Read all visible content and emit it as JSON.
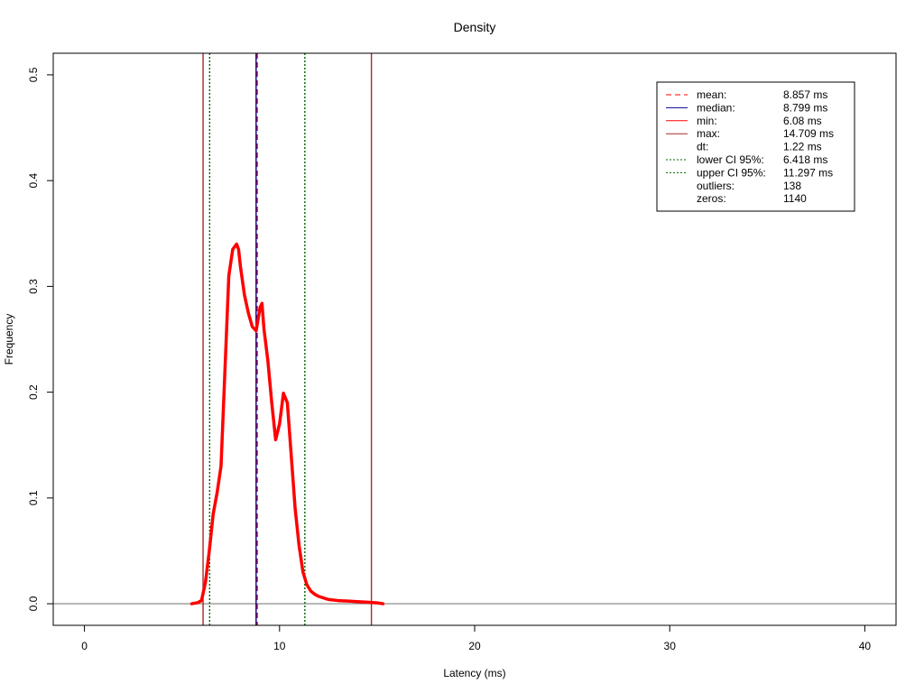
{
  "chart_data": {
    "type": "line",
    "title": "Density",
    "xlabel": "Latency (ms)",
    "ylabel": "Frequency",
    "xlim": [
      -1.6,
      41.6
    ],
    "ylim": [
      -0.0204,
      0.5204
    ],
    "x_ticks": [
      0,
      10,
      20,
      30,
      40
    ],
    "y_ticks": [
      0.0,
      0.1,
      0.2,
      0.3,
      0.4,
      0.5
    ],
    "x_tick_labels": [
      "0",
      "10",
      "20",
      "30",
      "40"
    ],
    "y_tick_labels": [
      "0.0",
      "0.1",
      "0.2",
      "0.3",
      "0.4",
      "0.5"
    ],
    "grid": false,
    "legend_position": "top-right",
    "series": [
      {
        "color": "#ff0000",
        "x": [
          5.5,
          5.8,
          6.0,
          6.2,
          6.4,
          6.6,
          6.8,
          7.0,
          7.2,
          7.4,
          7.6,
          7.8,
          7.9,
          8.0,
          8.2,
          8.4,
          8.6,
          8.8,
          9.0,
          9.1,
          9.2,
          9.4,
          9.6,
          9.8,
          10.0,
          10.2,
          10.4,
          10.6,
          10.8,
          11.0,
          11.2,
          11.4,
          11.6,
          11.8,
          12.0,
          12.5,
          13.0,
          13.5,
          14.0,
          14.5,
          15.0,
          15.3
        ],
        "y": [
          0.0,
          0.001,
          0.003,
          0.02,
          0.05,
          0.085,
          0.105,
          0.13,
          0.22,
          0.31,
          0.335,
          0.34,
          0.335,
          0.318,
          0.292,
          0.275,
          0.262,
          0.258,
          0.28,
          0.284,
          0.26,
          0.23,
          0.19,
          0.155,
          0.17,
          0.199,
          0.19,
          0.14,
          0.09,
          0.055,
          0.03,
          0.018,
          0.012,
          0.009,
          0.007,
          0.004,
          0.003,
          0.0025,
          0.002,
          0.0015,
          0.0008,
          0.0
        ]
      }
    ],
    "reference_lines": [
      {
        "key": "mean",
        "x": 8.857,
        "color": "#ff0000",
        "dash": "dashed"
      },
      {
        "key": "median",
        "x": 8.799,
        "color": "#00008b",
        "dash": "solid"
      },
      {
        "key": "min",
        "x": 6.08,
        "color": "#a52a2a",
        "dash": "solid"
      },
      {
        "key": "max",
        "x": 14.709,
        "color": "#a52a2a",
        "dash": "solid"
      },
      {
        "key": "lower_ci",
        "x": 6.418,
        "color": "#006400",
        "dash": "dotted"
      },
      {
        "key": "upper_ci",
        "x": 11.297,
        "color": "#006400",
        "dash": "dotted"
      }
    ],
    "baseline": {
      "y": 0,
      "color": "#808080"
    },
    "legend": [
      {
        "label": "mean:",
        "value": "8.857 ms",
        "color": "#ff0000",
        "dash": "dashed"
      },
      {
        "label": "median:",
        "value": "8.799 ms",
        "color": "#00008b",
        "dash": "solid"
      },
      {
        "label": "min:",
        "value": "6.08 ms",
        "color": "#ff0000",
        "dash": "solid"
      },
      {
        "label": "max:",
        "value": "14.709 ms",
        "color": "#a52a2a",
        "dash": "solid"
      },
      {
        "label": "dt:",
        "value": "1.22 ms",
        "color": null,
        "dash": null
      },
      {
        "label": "lower CI 95%:",
        "value": "6.418 ms",
        "color": "#006400",
        "dash": "dotted"
      },
      {
        "label": "upper CI 95%:",
        "value": "11.297 ms",
        "color": "#006400",
        "dash": "dotted"
      },
      {
        "label": "outliers:",
        "value": "138",
        "color": null,
        "dash": null
      },
      {
        "label": "zeros:",
        "value": "1140",
        "color": null,
        "dash": null
      }
    ]
  }
}
